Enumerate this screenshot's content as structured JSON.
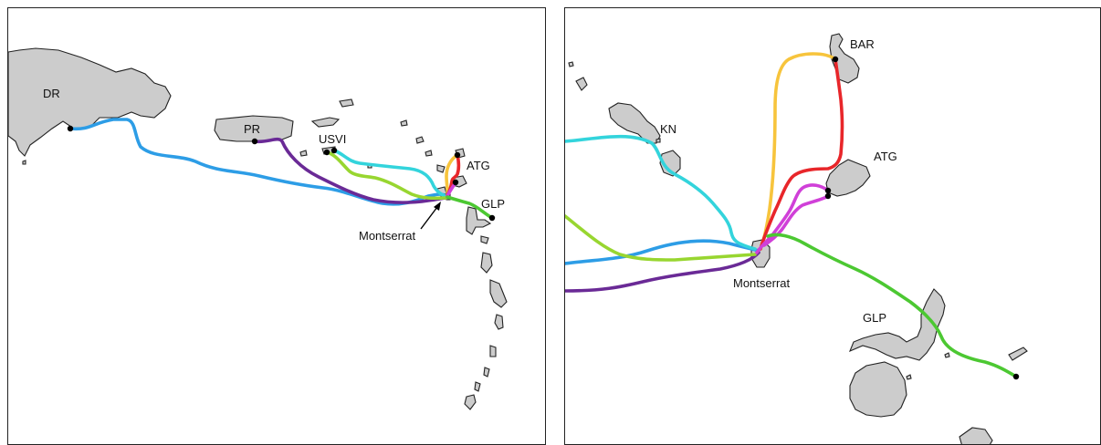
{
  "left_map": {
    "labels": {
      "dr": "DR",
      "pr": "PR",
      "usvi": "USVI",
      "atg": "ATG",
      "glp": "GLP",
      "montserrat": "Montserrat"
    }
  },
  "right_map": {
    "labels": {
      "bar": "BAR",
      "kn": "KN",
      "atg": "ATG",
      "montserrat": "Montserrat",
      "glp": "GLP"
    }
  },
  "colors": {
    "dr_track": "#2d9de6",
    "pr_track": "#6a2a96",
    "usvi_track_1": "#33d4dc",
    "usvi_track_2": "#98d630",
    "atg_track_1": "#e8262a",
    "atg_track_2": "#d040d8",
    "bar_track": "#f7c43c",
    "glp_track": "#4cc832",
    "land": "#cccccc"
  }
}
